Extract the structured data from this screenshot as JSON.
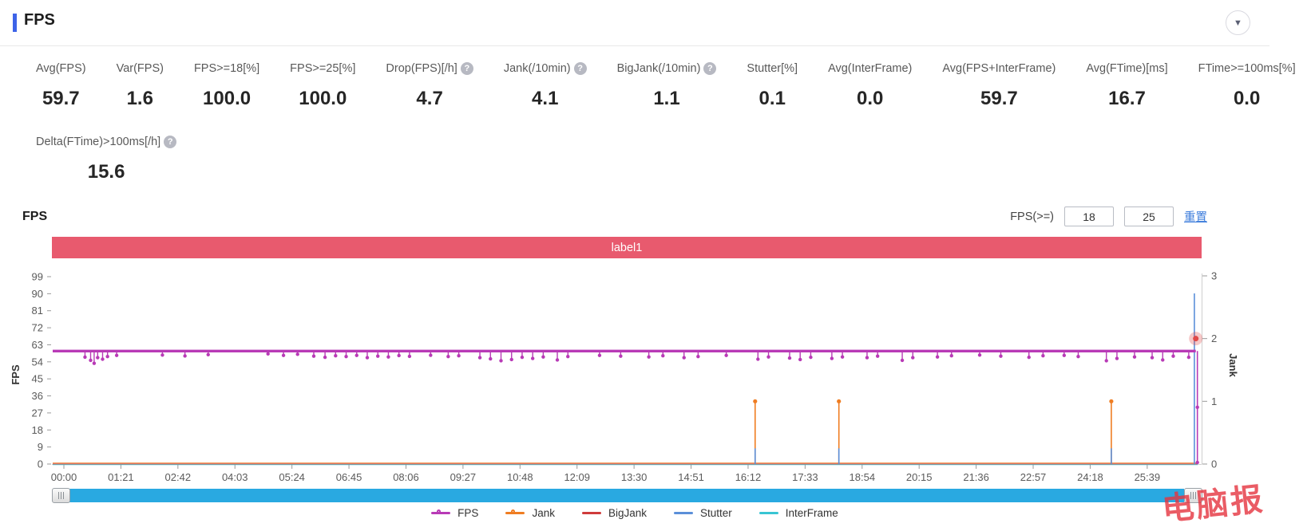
{
  "header": {
    "title": "FPS"
  },
  "metrics": [
    {
      "label": "Avg(FPS)",
      "value": "59.7",
      "has_help": false
    },
    {
      "label": "Var(FPS)",
      "value": "1.6",
      "has_help": false
    },
    {
      "label": "FPS>=18[%]",
      "value": "100.0",
      "has_help": false
    },
    {
      "label": "FPS>=25[%]",
      "value": "100.0",
      "has_help": false
    },
    {
      "label": "Drop(FPS)[/h]",
      "value": "4.7",
      "has_help": true
    },
    {
      "label": "Jank(/10min)",
      "value": "4.1",
      "has_help": true
    },
    {
      "label": "BigJank(/10min)",
      "value": "1.1",
      "has_help": true
    },
    {
      "label": "Stutter[%]",
      "value": "0.1",
      "has_help": false
    },
    {
      "label": "Avg(InterFrame)",
      "value": "0.0",
      "has_help": false
    },
    {
      "label": "Avg(FPS+InterFrame)",
      "value": "59.7",
      "has_help": false
    },
    {
      "label": "Avg(FTime)[ms]",
      "value": "16.7",
      "has_help": false
    },
    {
      "label": "FTime>=100ms[%]",
      "value": "0.0",
      "has_help": false
    }
  ],
  "metrics_row2": [
    {
      "label": "Delta(FTime)>100ms[/h]",
      "value": "15.6",
      "has_help": true
    }
  ],
  "chart_section": {
    "title": "FPS",
    "threshold_label": "FPS(>=)",
    "threshold_inputs": [
      "18",
      "25"
    ],
    "reset_label": "重置",
    "banner": {
      "text": "label1",
      "color": "#e85a6e"
    }
  },
  "chart_data": {
    "type": "line",
    "title": "FPS",
    "x_ticks": [
      "00:00",
      "01:21",
      "02:42",
      "04:03",
      "05:24",
      "06:45",
      "08:06",
      "09:27",
      "10:48",
      "12:09",
      "13:30",
      "14:51",
      "16:12",
      "17:33",
      "18:54",
      "20:15",
      "21:36",
      "22:57",
      "24:18",
      "25:39"
    ],
    "x_tick_interval_s": 81,
    "y_left": {
      "label": "FPS",
      "ticks": [
        0,
        9,
        18,
        27,
        36,
        45,
        54,
        63,
        72,
        81,
        90,
        99
      ],
      "range": [
        0,
        99
      ]
    },
    "y_right": {
      "label": "Jank",
      "ticks": [
        0,
        1,
        2,
        3
      ],
      "range": [
        0,
        3
      ]
    },
    "series": [
      {
        "name": "FPS",
        "axis": "left",
        "color": "#b83ab6",
        "baseline": 59.7,
        "end_drop_t": 1608,
        "dips": [
          [
            30,
            56.5
          ],
          [
            38,
            54.8
          ],
          [
            43,
            53.2
          ],
          [
            48,
            56.2
          ],
          [
            55,
            55.4
          ],
          [
            62,
            56.8
          ],
          [
            75,
            57.4
          ],
          [
            140,
            57.6
          ],
          [
            172,
            57.1
          ],
          [
            205,
            57.8
          ],
          [
            290,
            58.2
          ],
          [
            312,
            57.4
          ],
          [
            332,
            58
          ],
          [
            355,
            57
          ],
          [
            371,
            56.4
          ],
          [
            386,
            57.2
          ],
          [
            401,
            56.8
          ],
          [
            416,
            57.4
          ],
          [
            431,
            56.2
          ],
          [
            446,
            57
          ],
          [
            461,
            56.6
          ],
          [
            476,
            57.3
          ],
          [
            491,
            56.9
          ],
          [
            521,
            57.5
          ],
          [
            546,
            56.8
          ],
          [
            561,
            57.2
          ],
          [
            591,
            56.2
          ],
          [
            606,
            55.6
          ],
          [
            621,
            54.6
          ],
          [
            636,
            55.2
          ],
          [
            651,
            56.4
          ],
          [
            666,
            55.8
          ],
          [
            681,
            56.6
          ],
          [
            701,
            55
          ],
          [
            716,
            56.8
          ],
          [
            761,
            57.4
          ],
          [
            791,
            57
          ],
          [
            831,
            56.6
          ],
          [
            851,
            57.2
          ],
          [
            881,
            56.2
          ],
          [
            901,
            56.8
          ],
          [
            941,
            57.4
          ],
          [
            986,
            55.4
          ],
          [
            1001,
            56.6
          ],
          [
            1031,
            56
          ],
          [
            1046,
            55.2
          ],
          [
            1061,
            56.4
          ],
          [
            1091,
            55.8
          ],
          [
            1106,
            56.6
          ],
          [
            1141,
            56.2
          ],
          [
            1156,
            57
          ],
          [
            1191,
            54.8
          ],
          [
            1206,
            56.2
          ],
          [
            1241,
            56.6
          ],
          [
            1261,
            57.2
          ],
          [
            1301,
            57.6
          ],
          [
            1331,
            57
          ],
          [
            1371,
            56.4
          ],
          [
            1391,
            57.2
          ],
          [
            1421,
            57.4
          ],
          [
            1441,
            56.8
          ],
          [
            1481,
            54.6
          ],
          [
            1496,
            55.8
          ],
          [
            1521,
            56.6
          ],
          [
            1546,
            56.2
          ],
          [
            1561,
            55
          ],
          [
            1576,
            57
          ],
          [
            1598,
            56.4
          ]
        ]
      },
      {
        "name": "Jank",
        "axis": "right",
        "color": "#ef7d22",
        "baseline": 0,
        "spikes": [
          [
            982,
            1
          ],
          [
            1101,
            1
          ],
          [
            1488,
            1
          ]
        ]
      },
      {
        "name": "BigJank",
        "axis": "right",
        "color": "#cf3b3b",
        "baseline": 0,
        "spikes": []
      },
      {
        "name": "Stutter",
        "axis": "right",
        "color": "#5b8fd9",
        "baseline": 0,
        "spikes": [
          [
            982,
            0.25
          ],
          [
            1101,
            0.25
          ],
          [
            1488,
            0.25
          ],
          [
            1606,
            2.72
          ]
        ]
      },
      {
        "name": "InterFrame",
        "axis": "left",
        "color": "#38c5d3",
        "baseline": 0,
        "spikes": []
      }
    ],
    "highlight_point": {
      "series": "Jank",
      "t": 1608,
      "value": 2,
      "color": "#e04949"
    },
    "grid": false,
    "legend_position": "bottom"
  },
  "legend": [
    {
      "name": "FPS",
      "color": "#b83ab6",
      "marker": "line-circle"
    },
    {
      "name": "Jank",
      "color": "#ef7d22",
      "marker": "line-circle"
    },
    {
      "name": "BigJank",
      "color": "#cf3b3b",
      "marker": "line"
    },
    {
      "name": "Stutter",
      "color": "#5b8fd9",
      "marker": "line"
    },
    {
      "name": "InterFrame",
      "color": "#38c5d3",
      "marker": "line"
    }
  ],
  "watermark": "电脑报",
  "icons": {
    "collapse": "collapse-chevron-down",
    "help": "question-mark"
  }
}
